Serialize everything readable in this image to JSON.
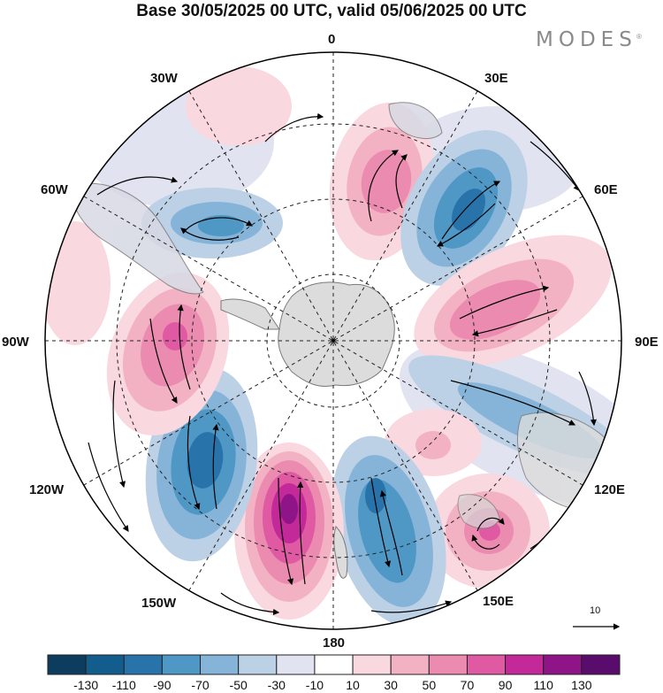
{
  "title": "Base 30/05/2025 00 UTC, valid 05/06/2025 00 UTC",
  "logo": {
    "text": "MODES",
    "mark": "®"
  },
  "longitude_labels": {
    "top": "0",
    "ne": "30E",
    "e_upper": "60E",
    "east": "90E",
    "e_lower": "120E",
    "se": "150E",
    "bottom": "180",
    "sw": "150W",
    "w_lower": "120W",
    "west": "90W",
    "w_upper": "60W",
    "nw": "30W"
  },
  "reference_vector": {
    "label": "10"
  },
  "colorbar": {
    "ticks": [
      "-130",
      "-110",
      "-90",
      "-70",
      "-50",
      "-30",
      "-10",
      "10",
      "30",
      "50",
      "70",
      "90",
      "110",
      "130"
    ],
    "colors": [
      "#0d3d5e",
      "#135d8c",
      "#2874aa",
      "#4f97c5",
      "#86b4d8",
      "#bcd0e6",
      "#e2e3f0",
      "#ffffff",
      "#f9d8df",
      "#f3b2c3",
      "#ec8bb0",
      "#e05aa3",
      "#c4299a",
      "#8f1487",
      "#5a0c6c"
    ]
  },
  "map_style": {
    "land": "#dcdcdc",
    "coast": "#7a7a7a",
    "grid": "#222222",
    "vector": "#000000",
    "pos_light": "#f6c6d2",
    "pos_mid": "#ee8fb3",
    "pos_strong": "#de4fa6",
    "pos_max": "#a61e93",
    "neg_light": "#c5d5ea",
    "neg_mid": "#8fb6da",
    "neg_strong": "#3d86bd",
    "neg_max": "#1e6ea5"
  }
}
